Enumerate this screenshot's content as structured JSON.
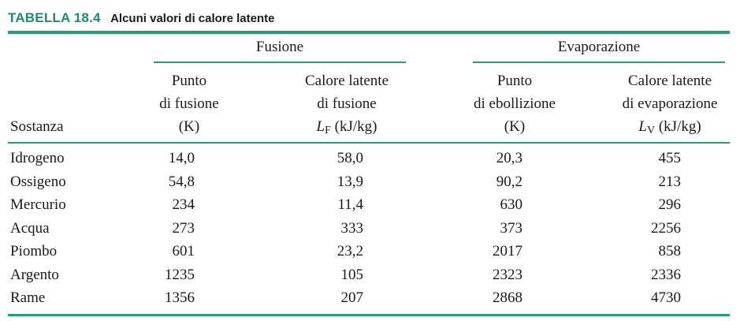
{
  "caption": {
    "id": "TABELLA 18.4",
    "title": "Alcuni valori di calore latente"
  },
  "groups": {
    "fusion": "Fusione",
    "evaporation": "Evaporazione"
  },
  "columns": {
    "substance": "Sostanza",
    "melting_point": [
      "Punto",
      "di fusione",
      "(K)"
    ],
    "latent_fusion": [
      "Calore latente",
      "di fusione"
    ],
    "latent_fusion_symbol": "L",
    "latent_fusion_sub": "F",
    "latent_fusion_unit": "(kJ/kg)",
    "boiling_point": [
      "Punto",
      "di ebollizione",
      "(K)"
    ],
    "latent_evap": [
      "Calore latente",
      "di evaporazione"
    ],
    "latent_evap_symbol": "L",
    "latent_evap_sub": "V",
    "latent_evap_unit": "(kJ/kg)"
  },
  "rows": [
    [
      "Idrogeno",
      "14,0",
      "58,0",
      "20,3",
      "455"
    ],
    [
      "Ossigeno",
      "54,8",
      "13,9",
      "90,2",
      "213"
    ],
    [
      "Mercurio",
      "234",
      "11,4",
      "630",
      "296"
    ],
    [
      "Acqua",
      "273",
      "333",
      "373",
      "2256"
    ],
    [
      "Piombo",
      "601",
      "23,2",
      "2017",
      "858"
    ],
    [
      "Argento",
      "1235",
      "105",
      "2323",
      "2336"
    ],
    [
      "Rame",
      "1356",
      "207",
      "2868",
      "4730"
    ]
  ],
  "colors": {
    "accent": "#2a9a7c",
    "caption_accent": "#1f8a72"
  }
}
